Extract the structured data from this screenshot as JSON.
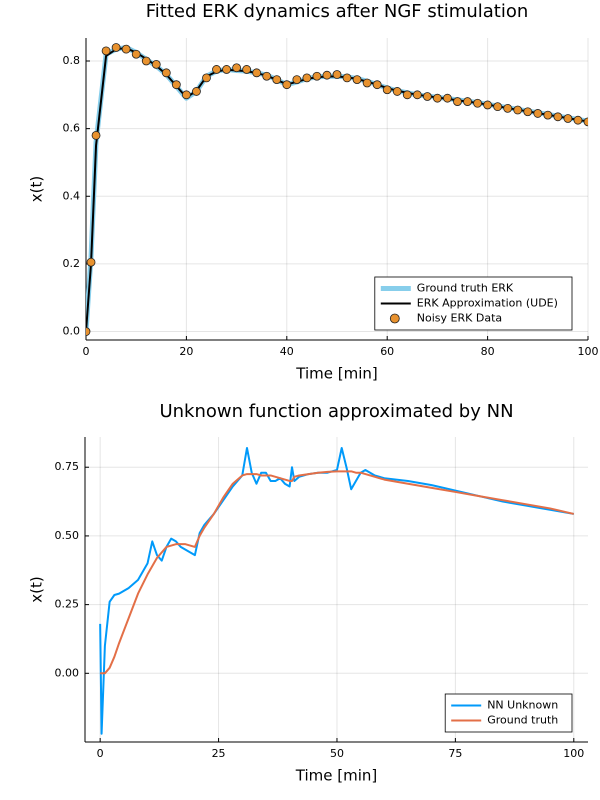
{
  "chart_data": [
    {
      "type": "line",
      "title": "Fitted ERK dynamics after NGF stimulation",
      "xlabel": "Time [min]",
      "ylabel": "x(t)",
      "x": [
        0,
        1,
        2,
        4,
        6,
        8,
        10,
        12,
        14,
        16,
        18,
        20,
        22,
        24,
        26,
        28,
        30,
        32,
        34,
        36,
        38,
        40,
        42,
        44,
        46,
        48,
        50,
        52,
        54,
        56,
        58,
        60,
        62,
        64,
        66,
        68,
        70,
        72,
        74,
        76,
        78,
        80,
        82,
        84,
        86,
        88,
        90,
        92,
        94,
        96,
        98,
        100
      ],
      "series": [
        {
          "name": "Ground truth ERK",
          "color": "#87ceeb",
          "mode": "line",
          "line_width": 5,
          "values": [
            0,
            0.22,
            0.56,
            0.82,
            0.835,
            0.84,
            0.825,
            0.805,
            0.785,
            0.76,
            0.725,
            0.69,
            0.71,
            0.755,
            0.77,
            0.775,
            0.772,
            0.77,
            0.765,
            0.758,
            0.745,
            0.73,
            0.738,
            0.748,
            0.753,
            0.755,
            0.755,
            0.753,
            0.748,
            0.74,
            0.73,
            0.72,
            0.712,
            0.706,
            0.7,
            0.696,
            0.693,
            0.689,
            0.685,
            0.681,
            0.677,
            0.672,
            0.667,
            0.662,
            0.657,
            0.652,
            0.647,
            0.642,
            0.637,
            0.632,
            0.627,
            0.622
          ]
        },
        {
          "name": "ERK Approximation (UDE)",
          "color": "#000000",
          "mode": "line",
          "line_width": 2,
          "values": [
            0,
            0.2,
            0.55,
            0.815,
            0.835,
            0.838,
            0.825,
            0.806,
            0.786,
            0.76,
            0.726,
            0.692,
            0.712,
            0.754,
            0.769,
            0.774,
            0.772,
            0.77,
            0.764,
            0.757,
            0.744,
            0.731,
            0.738,
            0.747,
            0.752,
            0.754,
            0.754,
            0.752,
            0.747,
            0.739,
            0.73,
            0.72,
            0.712,
            0.706,
            0.7,
            0.696,
            0.692,
            0.688,
            0.684,
            0.68,
            0.676,
            0.671,
            0.666,
            0.661,
            0.656,
            0.651,
            0.646,
            0.641,
            0.636,
            0.631,
            0.626,
            0.621
          ]
        },
        {
          "name": "Noisy ERK Data",
          "color": "#e8922f",
          "mode": "markers",
          "values": [
            0.0,
            0.205,
            0.58,
            0.83,
            0.84,
            0.835,
            0.82,
            0.8,
            0.79,
            0.765,
            0.73,
            0.7,
            0.71,
            0.75,
            0.775,
            0.775,
            0.78,
            0.775,
            0.765,
            0.755,
            0.745,
            0.73,
            0.745,
            0.75,
            0.755,
            0.758,
            0.76,
            0.75,
            0.745,
            0.735,
            0.73,
            0.715,
            0.71,
            0.7,
            0.7,
            0.695,
            0.69,
            0.69,
            0.68,
            0.68,
            0.675,
            0.67,
            0.665,
            0.66,
            0.655,
            0.65,
            0.645,
            0.64,
            0.635,
            0.63,
            0.625,
            0.62
          ]
        }
      ],
      "xlim": [
        0,
        100
      ],
      "xticks": [
        0,
        20,
        40,
        60,
        80,
        100
      ],
      "ylim": [
        -0.025,
        0.868
      ],
      "yticks": [
        {
          "value": 0,
          "label": "0.0"
        },
        0.2,
        0.4,
        0.6,
        0.8
      ],
      "grid": true,
      "legend": "bottom-right"
    },
    {
      "type": "line",
      "title": "Unknown function approximated by NN",
      "xlabel": "Time [min]",
      "ylabel": "x(t)",
      "x": [
        0,
        0.3,
        1,
        2,
        3,
        4,
        6,
        8,
        10,
        11,
        12,
        13,
        14,
        15,
        16,
        17,
        18,
        19,
        20,
        21,
        22,
        24,
        26,
        28,
        30,
        31,
        32,
        33,
        34,
        35,
        36,
        37,
        38,
        39,
        40,
        40.5,
        41,
        42,
        44,
        46,
        48,
        50,
        51,
        52,
        53,
        54,
        55,
        56,
        57,
        58,
        60,
        65,
        70,
        75,
        80,
        85,
        90,
        95,
        100
      ],
      "series": [
        {
          "name": "NN Unknown",
          "color": "#009afa",
          "mode": "line",
          "line_width": 2,
          "values": [
            0.18,
            -0.22,
            0.1,
            0.26,
            0.285,
            0.29,
            0.31,
            0.34,
            0.4,
            0.48,
            0.43,
            0.41,
            0.46,
            0.49,
            0.48,
            0.46,
            0.45,
            0.44,
            0.43,
            0.51,
            0.54,
            0.58,
            0.63,
            0.68,
            0.72,
            0.82,
            0.73,
            0.69,
            0.73,
            0.73,
            0.7,
            0.7,
            0.71,
            0.69,
            0.68,
            0.75,
            0.7,
            0.715,
            0.725,
            0.73,
            0.73,
            0.74,
            0.82,
            0.75,
            0.67,
            0.7,
            0.73,
            0.74,
            0.73,
            0.72,
            0.71,
            0.7,
            0.685,
            0.665,
            0.645,
            0.625,
            0.61,
            0.595,
            0.58
          ]
        },
        {
          "name": "Ground truth",
          "color": "#e36f47",
          "mode": "line",
          "line_width": 2,
          "values": [
            0,
            0,
            0.0,
            0.02,
            0.06,
            0.11,
            0.2,
            0.29,
            0.36,
            0.39,
            0.42,
            0.44,
            0.46,
            0.465,
            0.47,
            0.47,
            0.47,
            0.465,
            0.46,
            0.5,
            0.53,
            0.58,
            0.64,
            0.69,
            0.72,
            0.725,
            0.725,
            0.725,
            0.72,
            0.72,
            0.72,
            0.715,
            0.71,
            0.705,
            0.7,
            0.7,
            0.715,
            0.72,
            0.725,
            0.73,
            0.733,
            0.735,
            0.735,
            0.735,
            0.735,
            0.73,
            0.73,
            0.725,
            0.72,
            0.715,
            0.705,
            0.69,
            0.675,
            0.66,
            0.645,
            0.63,
            0.615,
            0.6,
            0.58
          ]
        }
      ],
      "xlim": [
        -3.2,
        103
      ],
      "xticks": [
        0,
        25,
        50,
        75,
        100
      ],
      "ylim": [
        -0.25,
        0.86
      ],
      "yticks": [
        {
          "value": 0,
          "label": "0.00"
        },
        0.25,
        {
          "value": 0.5,
          "label": "0.50"
        },
        0.75
      ],
      "grid": true,
      "legend": "bottom-right"
    }
  ]
}
